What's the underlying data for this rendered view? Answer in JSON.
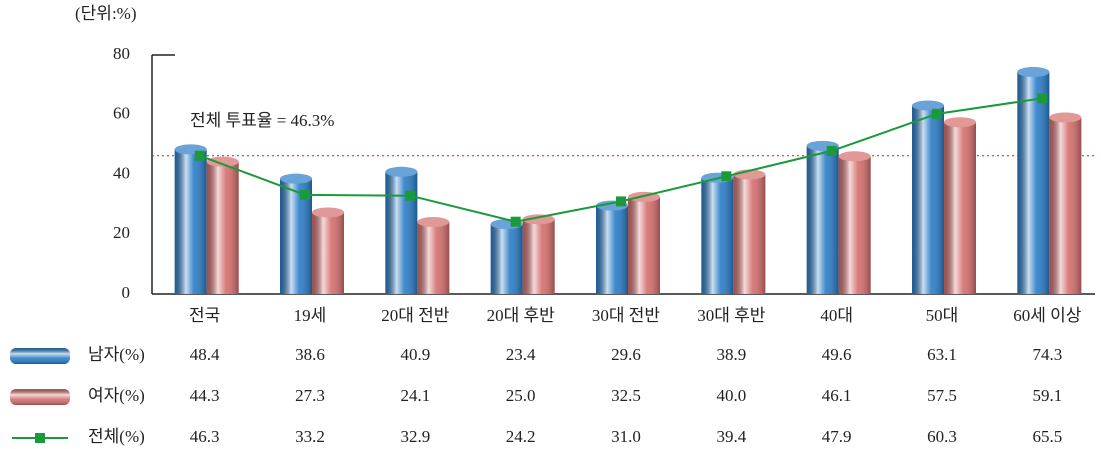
{
  "chart_data": {
    "type": "bar",
    "y_label": "(단위:%)",
    "categories": [
      "전국",
      "19세",
      "20대 전반",
      "20대 후반",
      "30대 전반",
      "30대 후반",
      "40대",
      "50대",
      "60세 이상"
    ],
    "series": [
      {
        "name": "남자(%)",
        "type": "bar",
        "color": "#2a7cc7",
        "values": [
          48.4,
          38.6,
          40.9,
          23.4,
          29.6,
          38.9,
          49.6,
          63.1,
          74.3
        ],
        "value_labels": [
          "48.4",
          "38.6",
          "40.9",
          "23.4",
          "29.6",
          "38.9",
          "49.6",
          "63.1",
          "74.3"
        ]
      },
      {
        "name": "여자(%)",
        "type": "bar",
        "color": "#d46e6c",
        "values": [
          44.3,
          27.3,
          24.1,
          25.0,
          32.5,
          40.0,
          46.1,
          57.5,
          59.1
        ],
        "value_labels": [
          "44.3",
          "27.3",
          "24.1",
          "25.0",
          "32.5",
          "40.0",
          "46.1",
          "57.5",
          "59.1"
        ]
      },
      {
        "name": "전체(%)",
        "type": "line",
        "color": "#1a9a3a",
        "values": [
          46.3,
          33.2,
          32.9,
          24.2,
          31.0,
          39.4,
          47.9,
          60.3,
          65.5
        ],
        "value_labels": [
          "46.3",
          "33.2",
          "32.9",
          "24.2",
          "31.0",
          "39.4",
          "47.9",
          "60.3",
          "65.5"
        ]
      }
    ],
    "reference_line": {
      "value": 46.3,
      "label": "전체 투표율 = 46.3%",
      "color": "#d33"
    },
    "ylim": [
      0,
      80
    ],
    "yticks": [
      0,
      20,
      40,
      60,
      80
    ]
  }
}
